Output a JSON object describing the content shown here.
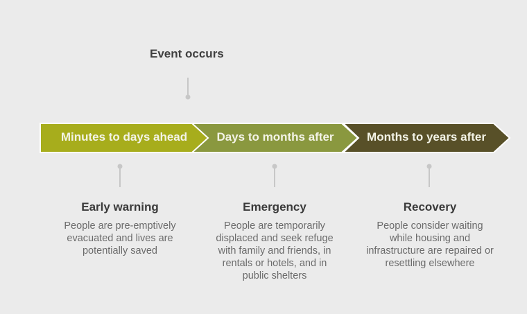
{
  "event": {
    "label": "Event occurs"
  },
  "phases": [
    {
      "arrow_label": "Minutes to days ahead",
      "heading": "Early warning",
      "description": "People are pre-emptively evacuated and lives are potentially saved",
      "color": "#a7ad1c"
    },
    {
      "arrow_label": "Days to months after",
      "heading": "Emergency",
      "description": "People are temporarily displaced and seek refuge with family and friends, in rentals or hotels, and in public shelters",
      "color": "#8a983f"
    },
    {
      "arrow_label": "Months to years after",
      "heading": "Recovery",
      "description": "People consider waiting while housing and infrastructure are repaired or resettling elsewhere",
      "color": "#585028"
    }
  ]
}
